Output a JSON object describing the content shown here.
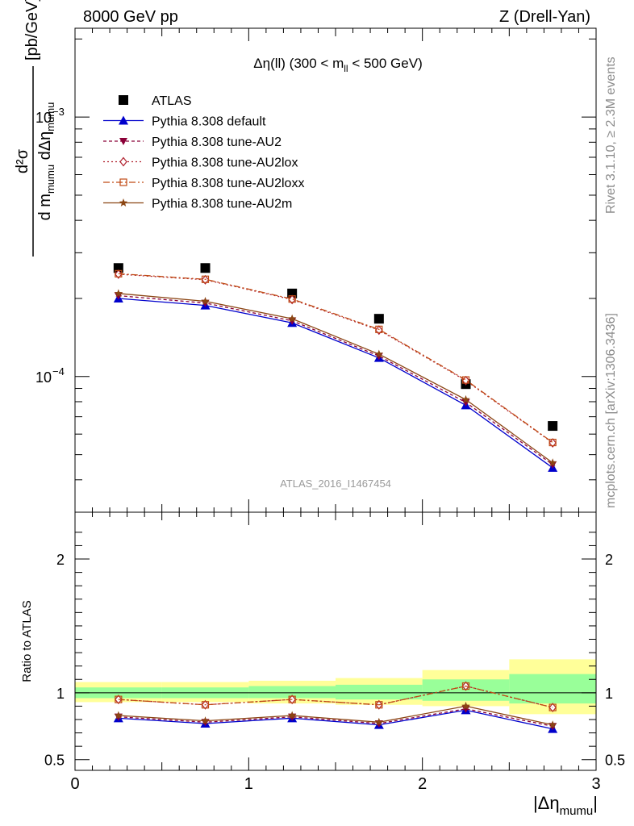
{
  "header": {
    "left": "8000 GeV pp",
    "right": "Z (Drell-Yan)"
  },
  "side_labels": {
    "rivet": "Rivet 3.1.10, ≥ 2.3M events",
    "mcplots": "mcplots.cern.ch [arXiv:1306.3436]"
  },
  "chart_data": {
    "type": "scatter",
    "title": "Δη(ll) (300 < m_ll < 500 GeV)",
    "title_parts": {
      "main": "Δη(ll) (300 < m",
      "sub": "ll",
      "tail": " < 500 GeV)"
    },
    "ylabel": "d²σ / d m_mumu dΔη_mumu [pb/GeV]",
    "ylabel_parts": {
      "num": "d²σ",
      "den": "d m",
      "den_sub": "mumu",
      "den_mid": " dΔη",
      "den_sub2": "mumu",
      "unit": "[pb/GeV]"
    },
    "xlabel": "|Δη_mumu|",
    "xlabel_parts": {
      "main": "|Δη",
      "sub": "mumu",
      "tail": "|"
    },
    "yscale": "log",
    "xlim": [
      0,
      3
    ],
    "ylim": [
      3e-05,
      0.0022
    ],
    "xticks": [
      "0",
      "1",
      "2",
      "3"
    ],
    "yticks_main": [
      {
        "value": 0.001,
        "label": "10",
        "exp": "−3"
      },
      {
        "value": 0.0001,
        "label": "10",
        "exp": "−4"
      }
    ],
    "watermark": "ATLAS_2016_I1467454",
    "x": [
      0.25,
      0.75,
      1.25,
      1.75,
      2.25,
      2.75
    ],
    "series": [
      {
        "name": "ATLAS",
        "marker": "square",
        "color": "#000000",
        "dash": "none",
        "values": [
          0.000262,
          0.000262,
          0.000209,
          0.000167,
          9.35e-05,
          6.45e-05
        ]
      },
      {
        "name": "Pythia 8.308 default",
        "marker": "triangle-up",
        "color": "#0000cc",
        "dash": "solid",
        "values": [
          0.0002,
          0.000188,
          0.000161,
          0.000118,
          7.75e-05,
          4.45e-05
        ]
      },
      {
        "name": "Pythia 8.308 tune-AU2",
        "marker": "triangle-down",
        "color": "#8b0038",
        "dash": "4,3",
        "values": [
          0.000205,
          0.000192,
          0.000164,
          0.00012,
          7.95e-05,
          4.58e-05
        ]
      },
      {
        "name": "Pythia 8.308 tune-AU2lox",
        "marker": "diamond",
        "color": "#b0202e",
        "dash": "2,3",
        "values": [
          0.000248,
          0.000236,
          0.000198,
          0.000151,
          9.65e-05,
          5.55e-05
        ]
      },
      {
        "name": "Pythia 8.308 tune-AU2loxx",
        "marker": "open-square",
        "color": "#c04a14",
        "dash": "8,3,2,3",
        "values": [
          0.000249,
          0.000237,
          0.000199,
          0.000152,
          9.7e-05,
          5.57e-05
        ]
      },
      {
        "name": "Pythia 8.308 tune-AU2m",
        "marker": "star",
        "color": "#8b4513",
        "dash": "solid",
        "values": [
          0.000209,
          0.000195,
          0.000167,
          0.000122,
          8.15e-05,
          4.65e-05
        ]
      }
    ],
    "ratio": {
      "ylabel": "Ratio to ATLAS",
      "ylim": [
        0.42,
        2.35
      ],
      "yticks": [
        {
          "value": 0.5,
          "label": "0.5"
        },
        {
          "value": 1,
          "label": "1"
        },
        {
          "value": 2,
          "label": "2"
        }
      ],
      "bands": [
        {
          "x0": 0,
          "x1": 0.5,
          "inner": [
            0.96,
            1.04
          ],
          "outer": [
            0.93,
            1.08
          ]
        },
        {
          "x0": 0.5,
          "x1": 1,
          "inner": [
            0.96,
            1.04
          ],
          "outer": [
            0.93,
            1.08
          ]
        },
        {
          "x0": 1,
          "x1": 1.5,
          "inner": [
            0.96,
            1.05
          ],
          "outer": [
            0.92,
            1.09
          ]
        },
        {
          "x0": 1.5,
          "x1": 2,
          "inner": [
            0.95,
            1.06
          ],
          "outer": [
            0.91,
            1.11
          ]
        },
        {
          "x0": 2,
          "x1": 2.5,
          "inner": [
            0.94,
            1.1
          ],
          "outer": [
            0.9,
            1.17
          ]
        },
        {
          "x0": 2.5,
          "x1": 3,
          "inner": [
            0.92,
            1.14
          ],
          "outer": [
            0.84,
            1.25
          ]
        }
      ],
      "series": [
        {
          "name": "Pythia 8.308 default",
          "values": [
            0.81,
            0.77,
            0.81,
            0.76,
            0.87,
            0.73
          ]
        },
        {
          "name": "Pythia 8.308 tune-AU2",
          "values": [
            0.82,
            0.78,
            0.82,
            0.77,
            0.88,
            0.75
          ]
        },
        {
          "name": "Pythia 8.308 tune-AU2lox",
          "values": [
            0.95,
            0.91,
            0.95,
            0.91,
            1.05,
            0.89
          ]
        },
        {
          "name": "Pythia 8.308 tune-AU2loxx",
          "values": [
            0.95,
            0.91,
            0.95,
            0.91,
            1.05,
            0.89
          ]
        },
        {
          "name": "Pythia 8.308 tune-AU2m",
          "values": [
            0.83,
            0.79,
            0.83,
            0.78,
            0.9,
            0.76
          ]
        }
      ]
    }
  }
}
